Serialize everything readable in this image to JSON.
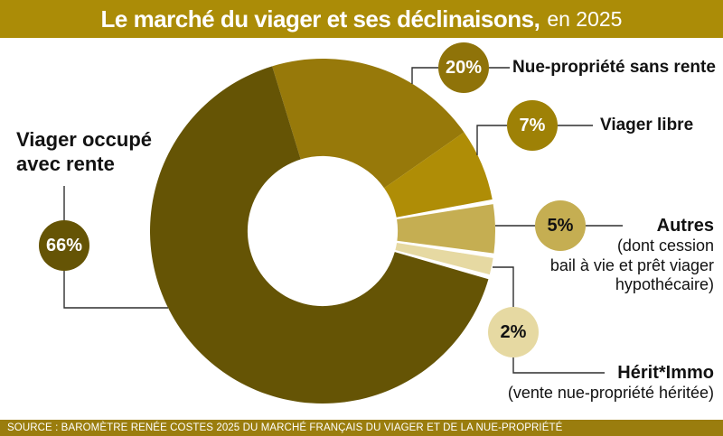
{
  "title": {
    "main": "Le marché du viager et ses déclinaisons,",
    "suffix": "en 2025"
  },
  "source": "SOURCE : BAROMÈTRE RENÉE COSTES 2025 DU MARCHÉ FRANÇAIS DU VIAGER ET DE LA NUE-PROPRIÉTÉ",
  "colors": {
    "title_band": "#AB8C07",
    "source_band": "#9A7D0E",
    "connector_line": "#2F2F2F",
    "background": "#FFFFFF",
    "text": "#121212"
  },
  "chart_data": {
    "type": "pie",
    "donut": true,
    "title": "Le marché du viager et ses déclinaisons, en 2025",
    "unit": "%",
    "start_angle_deg": -17,
    "clockwise": true,
    "inner_radius_ratio": 0.435,
    "separators_after": [
      1,
      2,
      3
    ],
    "slices": [
      {
        "label": "Nue-propriété sans rente",
        "value": 20,
        "color": "#97790A",
        "badge_color": "#8F7309",
        "pct_text_color": "#FFFFFF"
      },
      {
        "label": "Viager libre",
        "value": 7,
        "color": "#AF8D06",
        "badge_color": "#9E8106",
        "pct_text_color": "#FFFFFF"
      },
      {
        "label": "Autres (dont cession bail à vie et prêt viager hypothécaire)",
        "value": 5,
        "color": "#C5AE52",
        "badge_color": "#C5AE52",
        "pct_text_color": "#121212"
      },
      {
        "label": "Hérit*Immo (vente nue-propriété héritée)",
        "value": 2,
        "color": "#E6D9A2",
        "badge_color": "#E6D9A2",
        "pct_text_color": "#121212"
      },
      {
        "label": "Viager occupé avec rente",
        "value": 66,
        "color": "#655405",
        "badge_color": "#655405",
        "pct_text_color": "#FFFFFF"
      }
    ]
  },
  "callouts": {
    "left": {
      "line1": "Viager occupé",
      "line2": "avec rente",
      "pct": "66%"
    },
    "right": [
      {
        "pct": "20%",
        "label": "Nue-propriété sans rente",
        "sub": []
      },
      {
        "pct": "7%",
        "label": "Viager libre",
        "sub": []
      },
      {
        "pct": "5%",
        "label": "Autres",
        "sub": [
          "(dont cession",
          "bail à vie et prêt viager",
          "hypothécaire)"
        ]
      },
      {
        "pct": "2%",
        "label": "Hérit*Immo",
        "sub": [
          "(vente nue-propriété héritée)"
        ]
      }
    ]
  }
}
